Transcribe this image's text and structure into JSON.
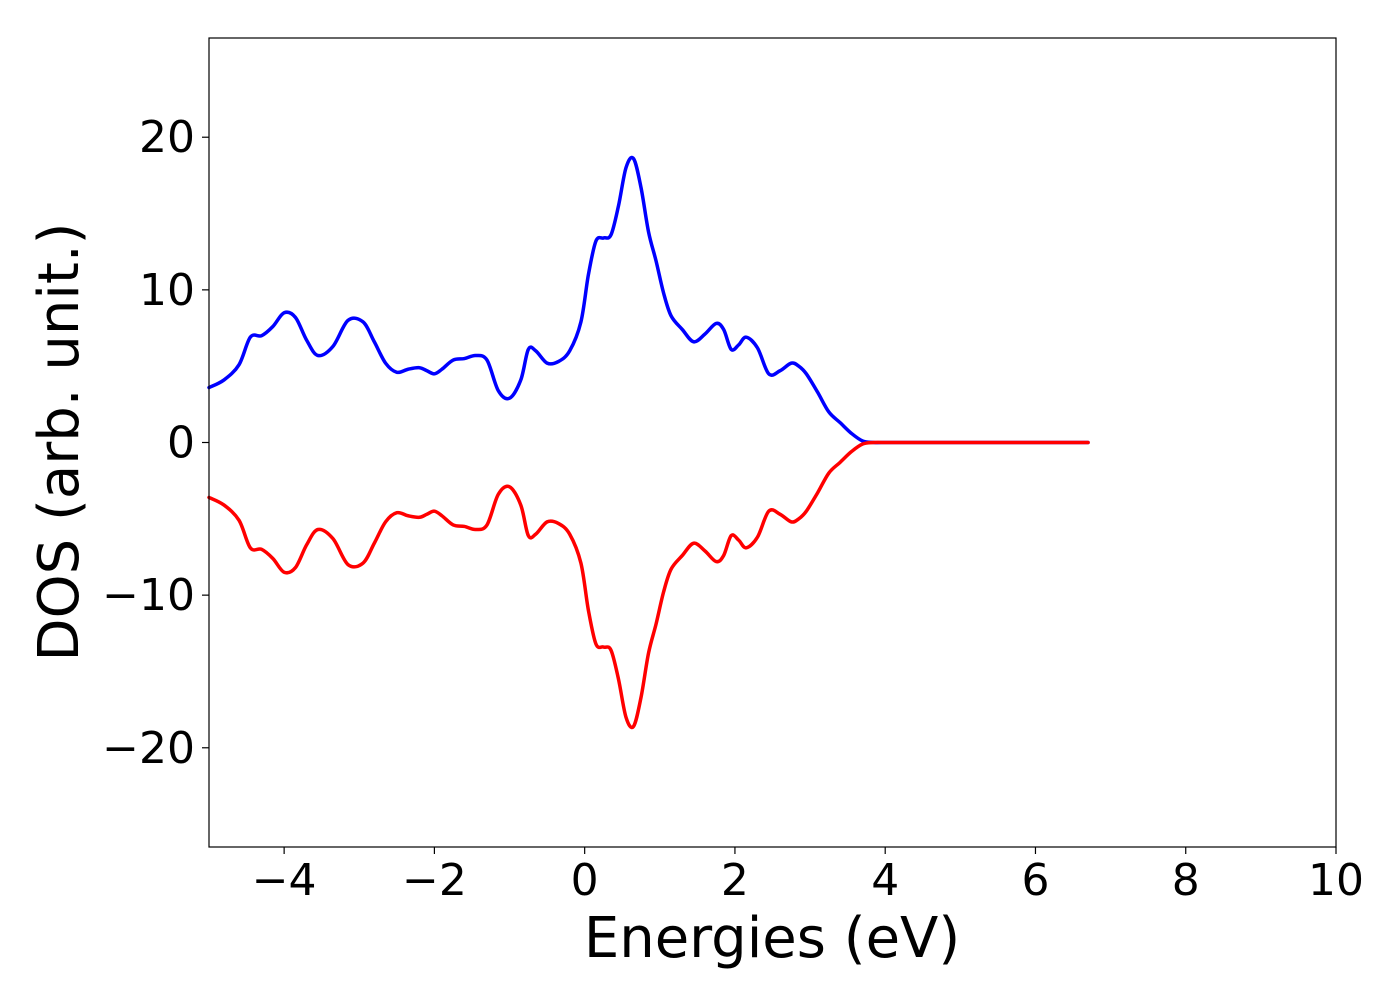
{
  "chart_data": {
    "type": "line",
    "title": "",
    "xlabel": "Energies (eV)",
    "ylabel": "DOS (arb. unit.)",
    "xlim": [
      -5,
      10
    ],
    "ylim": [
      -26.5,
      26.5
    ],
    "grid": false,
    "legend": "none",
    "x_ticks": [
      -4,
      -2,
      0,
      2,
      4,
      6,
      8,
      10
    ],
    "x_tick_labels": [
      "−4",
      "−2",
      "0",
      "2",
      "4",
      "6",
      "8",
      "10"
    ],
    "y_ticks": [
      -20,
      -10,
      0,
      10,
      20
    ],
    "y_tick_labels": [
      "−20",
      "−10",
      "0",
      "10",
      "20"
    ],
    "x": [
      -5.0,
      -4.8,
      -4.6,
      -4.45,
      -4.3,
      -4.15,
      -4.0,
      -3.85,
      -3.7,
      -3.55,
      -3.35,
      -3.15,
      -2.95,
      -2.8,
      -2.65,
      -2.5,
      -2.35,
      -2.2,
      -2.1,
      -2.0,
      -1.9,
      -1.75,
      -1.6,
      -1.45,
      -1.3,
      -1.15,
      -1.0,
      -0.85,
      -0.75,
      -0.65,
      -0.5,
      -0.35,
      -0.2,
      -0.05,
      0.05,
      0.15,
      0.25,
      0.35,
      0.45,
      0.55,
      0.65,
      0.75,
      0.85,
      0.95,
      1.05,
      1.15,
      1.3,
      1.45,
      1.6,
      1.75,
      1.85,
      1.95,
      2.05,
      2.15,
      2.3,
      2.45,
      2.6,
      2.75,
      2.85,
      2.95,
      3.1,
      3.25,
      3.4,
      3.55,
      3.7,
      3.85,
      4.0,
      4.15,
      4.3,
      4.45,
      4.6,
      5.0,
      5.5,
      6.0,
      6.5,
      6.7
    ],
    "series": [
      {
        "color": "#0000ff",
        "values": [
          3.6,
          4.1,
          5.1,
          6.9,
          7.0,
          7.6,
          8.5,
          8.2,
          6.7,
          5.7,
          6.3,
          8.0,
          7.9,
          6.6,
          5.2,
          4.6,
          4.8,
          4.9,
          4.7,
          4.5,
          4.8,
          5.4,
          5.5,
          5.7,
          5.4,
          3.4,
          2.9,
          4.1,
          6.1,
          6.0,
          5.2,
          5.3,
          6.0,
          7.9,
          11.0,
          13.2,
          13.4,
          13.6,
          15.5,
          18.0,
          18.6,
          16.7,
          13.8,
          11.9,
          9.8,
          8.3,
          7.4,
          6.6,
          7.1,
          7.8,
          7.4,
          6.1,
          6.4,
          6.9,
          6.2,
          4.5,
          4.7,
          5.2,
          5.0,
          4.5,
          3.3,
          2.0,
          1.3,
          0.6,
          0.1,
          0.0,
          0.0,
          0.0,
          0.0,
          0.0,
          0.0,
          0.0,
          0.0,
          0.0,
          0.0,
          0.0
        ]
      },
      {
        "color": "#ff0000",
        "values": [
          -3.6,
          -4.1,
          -5.1,
          -6.9,
          -7.0,
          -7.6,
          -8.5,
          -8.2,
          -6.7,
          -5.7,
          -6.3,
          -8.0,
          -7.9,
          -6.6,
          -5.2,
          -4.6,
          -4.8,
          -4.9,
          -4.7,
          -4.5,
          -4.8,
          -5.4,
          -5.5,
          -5.7,
          -5.4,
          -3.4,
          -2.9,
          -4.1,
          -6.1,
          -6.0,
          -5.2,
          -5.3,
          -6.0,
          -7.9,
          -11.0,
          -13.2,
          -13.4,
          -13.6,
          -15.5,
          -18.0,
          -18.6,
          -16.7,
          -13.8,
          -11.9,
          -9.8,
          -8.3,
          -7.4,
          -6.6,
          -7.1,
          -7.8,
          -7.4,
          -6.1,
          -6.4,
          -6.9,
          -6.2,
          -4.5,
          -4.7,
          -5.2,
          -5.0,
          -4.5,
          -3.3,
          -2.0,
          -1.3,
          -0.6,
          -0.1,
          0.0,
          0.0,
          0.0,
          0.0,
          0.0,
          0.0,
          0.0,
          0.0,
          0.0,
          0.0,
          0.0
        ]
      }
    ]
  }
}
